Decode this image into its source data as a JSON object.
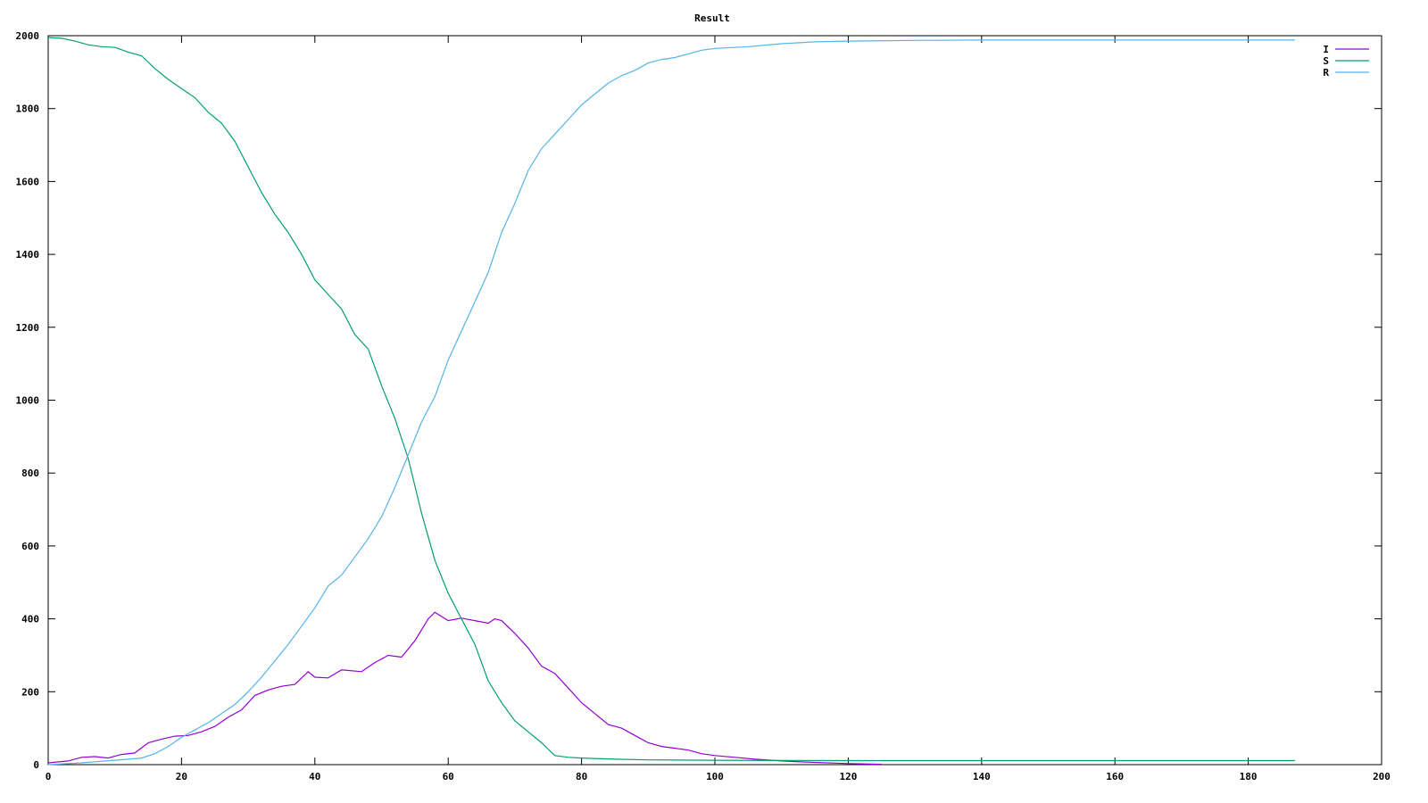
{
  "chart_data": {
    "type": "line",
    "title": "Result",
    "xlabel": "",
    "ylabel": "",
    "xlim": [
      0,
      200
    ],
    "ylim": [
      0,
      2000
    ],
    "xticks": [
      0,
      20,
      40,
      60,
      80,
      100,
      120,
      140,
      160,
      180,
      200
    ],
    "yticks": [
      0,
      200,
      400,
      600,
      800,
      1000,
      1200,
      1400,
      1600,
      1800,
      2000
    ],
    "grid": false,
    "legend": "top-right",
    "series": [
      {
        "name": "I",
        "color": "#9400d3",
        "points": [
          [
            0,
            5
          ],
          [
            3,
            10
          ],
          [
            5,
            20
          ],
          [
            7,
            22
          ],
          [
            9,
            18
          ],
          [
            11,
            28
          ],
          [
            13,
            32
          ],
          [
            15,
            60
          ],
          [
            17,
            70
          ],
          [
            19,
            78
          ],
          [
            21,
            80
          ],
          [
            23,
            90
          ],
          [
            25,
            105
          ],
          [
            27,
            130
          ],
          [
            29,
            150
          ],
          [
            31,
            190
          ],
          [
            33,
            205
          ],
          [
            35,
            215
          ],
          [
            37,
            220
          ],
          [
            39,
            255
          ],
          [
            40,
            240
          ],
          [
            42,
            238
          ],
          [
            44,
            260
          ],
          [
            47,
            255
          ],
          [
            49,
            280
          ],
          [
            51,
            300
          ],
          [
            53,
            295
          ],
          [
            55,
            340
          ],
          [
            57,
            400
          ],
          [
            58,
            418
          ],
          [
            60,
            395
          ],
          [
            62,
            402
          ],
          [
            64,
            395
          ],
          [
            66,
            388
          ],
          [
            67,
            400
          ],
          [
            68,
            395
          ],
          [
            70,
            360
          ],
          [
            72,
            320
          ],
          [
            74,
            270
          ],
          [
            76,
            250
          ],
          [
            78,
            210
          ],
          [
            80,
            170
          ],
          [
            82,
            140
          ],
          [
            84,
            110
          ],
          [
            86,
            100
          ],
          [
            88,
            80
          ],
          [
            90,
            60
          ],
          [
            92,
            50
          ],
          [
            94,
            45
          ],
          [
            96,
            40
          ],
          [
            98,
            30
          ],
          [
            100,
            25
          ],
          [
            103,
            20
          ],
          [
            106,
            15
          ],
          [
            110,
            10
          ],
          [
            115,
            6
          ],
          [
            120,
            3
          ],
          [
            125,
            1
          ]
        ]
      },
      {
        "name": "S",
        "color": "#009e73",
        "points": [
          [
            0,
            1995
          ],
          [
            2,
            1993
          ],
          [
            4,
            1985
          ],
          [
            6,
            1975
          ],
          [
            8,
            1970
          ],
          [
            10,
            1968
          ],
          [
            12,
            1955
          ],
          [
            14,
            1945
          ],
          [
            16,
            1910
          ],
          [
            18,
            1880
          ],
          [
            20,
            1855
          ],
          [
            22,
            1830
          ],
          [
            24,
            1790
          ],
          [
            26,
            1760
          ],
          [
            28,
            1710
          ],
          [
            30,
            1640
          ],
          [
            32,
            1570
          ],
          [
            34,
            1510
          ],
          [
            36,
            1460
          ],
          [
            38,
            1400
          ],
          [
            40,
            1330
          ],
          [
            42,
            1290
          ],
          [
            44,
            1250
          ],
          [
            46,
            1180
          ],
          [
            48,
            1140
          ],
          [
            50,
            1040
          ],
          [
            52,
            950
          ],
          [
            54,
            840
          ],
          [
            56,
            690
          ],
          [
            58,
            560
          ],
          [
            60,
            470
          ],
          [
            62,
            400
          ],
          [
            64,
            330
          ],
          [
            65,
            280
          ],
          [
            66,
            230
          ],
          [
            68,
            170
          ],
          [
            70,
            120
          ],
          [
            72,
            90
          ],
          [
            74,
            60
          ],
          [
            76,
            25
          ],
          [
            78,
            20
          ],
          [
            80,
            18
          ],
          [
            85,
            15
          ],
          [
            90,
            13
          ],
          [
            100,
            12
          ],
          [
            120,
            11
          ],
          [
            150,
            11
          ],
          [
            187,
            11
          ]
        ]
      },
      {
        "name": "R",
        "color": "#56b4e9",
        "points": [
          [
            0,
            0
          ],
          [
            5,
            5
          ],
          [
            10,
            12
          ],
          [
            14,
            18
          ],
          [
            16,
            30
          ],
          [
            18,
            50
          ],
          [
            20,
            75
          ],
          [
            22,
            95
          ],
          [
            24,
            115
          ],
          [
            26,
            140
          ],
          [
            28,
            165
          ],
          [
            30,
            200
          ],
          [
            32,
            240
          ],
          [
            34,
            285
          ],
          [
            36,
            330
          ],
          [
            38,
            380
          ],
          [
            40,
            430
          ],
          [
            42,
            490
          ],
          [
            44,
            520
          ],
          [
            46,
            570
          ],
          [
            48,
            620
          ],
          [
            50,
            680
          ],
          [
            52,
            760
          ],
          [
            54,
            850
          ],
          [
            56,
            940
          ],
          [
            58,
            1010
          ],
          [
            60,
            1110
          ],
          [
            62,
            1190
          ],
          [
            64,
            1270
          ],
          [
            66,
            1350
          ],
          [
            68,
            1460
          ],
          [
            70,
            1540
          ],
          [
            72,
            1630
          ],
          [
            74,
            1690
          ],
          [
            76,
            1730
          ],
          [
            78,
            1770
          ],
          [
            80,
            1810
          ],
          [
            82,
            1840
          ],
          [
            84,
            1870
          ],
          [
            86,
            1890
          ],
          [
            88,
            1905
          ],
          [
            90,
            1925
          ],
          [
            92,
            1935
          ],
          [
            94,
            1940
          ],
          [
            96,
            1950
          ],
          [
            98,
            1960
          ],
          [
            100,
            1965
          ],
          [
            105,
            1970
          ],
          [
            110,
            1978
          ],
          [
            115,
            1983
          ],
          [
            120,
            1985
          ],
          [
            130,
            1987
          ],
          [
            140,
            1988
          ],
          [
            160,
            1988
          ],
          [
            187,
            1988
          ]
        ]
      }
    ]
  }
}
